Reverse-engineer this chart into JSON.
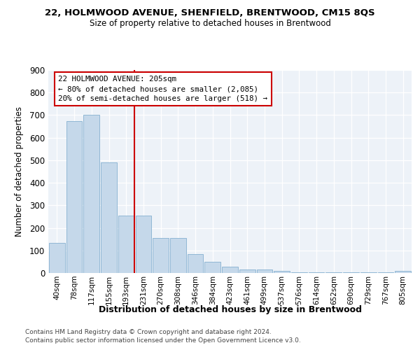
{
  "title1": "22, HOLMWOOD AVENUE, SHENFIELD, BRENTWOOD, CM15 8QS",
  "title2": "Size of property relative to detached houses in Brentwood",
  "xlabel": "Distribution of detached houses by size in Brentwood",
  "ylabel": "Number of detached properties",
  "bar_color": "#c5d8ea",
  "bar_edge_color": "#85b0d0",
  "categories": [
    "40sqm",
    "78sqm",
    "117sqm",
    "155sqm",
    "193sqm",
    "231sqm",
    "270sqm",
    "308sqm",
    "346sqm",
    "384sqm",
    "423sqm",
    "461sqm",
    "499sqm",
    "537sqm",
    "576sqm",
    "614sqm",
    "652sqm",
    "690sqm",
    "729sqm",
    "767sqm",
    "805sqm"
  ],
  "values": [
    135,
    675,
    700,
    490,
    253,
    253,
    155,
    155,
    85,
    50,
    27,
    17,
    17,
    10,
    2,
    2,
    2,
    2,
    2,
    2,
    8
  ],
  "vline_pos": 4.5,
  "vline_color": "#cc0000",
  "ann_line1": "22 HOLMWOOD AVENUE: 205sqm",
  "ann_line2": "← 80% of detached houses are smaller (2,085)",
  "ann_line3": "20% of semi-detached houses are larger (518) →",
  "ylim_max": 900,
  "yticks": [
    0,
    100,
    200,
    300,
    400,
    500,
    600,
    700,
    800,
    900
  ],
  "footer1": "Contains HM Land Registry data © Crown copyright and database right 2024.",
  "footer2": "Contains public sector information licensed under the Open Government Licence v3.0.",
  "bg_color": "#edf2f8",
  "grid_color": "#ffffff"
}
